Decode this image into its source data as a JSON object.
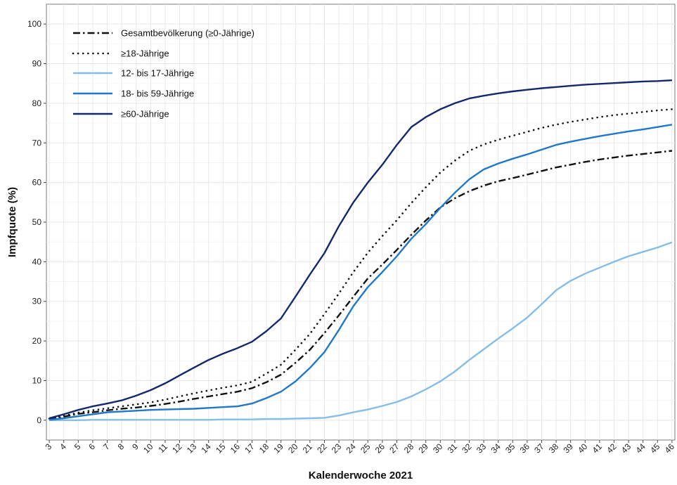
{
  "chart_data": {
    "type": "line",
    "xlabel": "Kalenderwoche 2021",
    "ylabel": "Impfquote (%)",
    "xlim": [
      2.8,
      46.2
    ],
    "ylim": [
      -5,
      105
    ],
    "x_ticks": [
      3,
      4,
      5,
      6,
      7,
      8,
      9,
      10,
      11,
      12,
      13,
      14,
      15,
      16,
      17,
      18,
      19,
      20,
      21,
      22,
      23,
      24,
      25,
      26,
      27,
      28,
      29,
      30,
      31,
      32,
      33,
      34,
      35,
      36,
      37,
      38,
      39,
      40,
      41,
      42,
      43,
      44,
      45,
      46
    ],
    "y_ticks": [
      0,
      10,
      20,
      30,
      40,
      50,
      60,
      70,
      80,
      90,
      100
    ],
    "grid": true,
    "legend_position": "top-left",
    "series": [
      {
        "name": "Gesamtbevölkerung (≥0-Jährige)",
        "color": "#111111",
        "style": "dashdot",
        "values": [
          0.3,
          0.9,
          1.6,
          2.0,
          2.5,
          2.9,
          3.2,
          3.6,
          4.1,
          4.7,
          5.4,
          6.0,
          6.6,
          7.2,
          8.1,
          9.6,
          11.5,
          14.5,
          17.8,
          22.0,
          26.5,
          31.2,
          35.8,
          39.3,
          43.0,
          46.8,
          50.4,
          53.7,
          56.0,
          57.8,
          59.2,
          60.3,
          61.1,
          62.0,
          62.9,
          63.8,
          64.5,
          65.2,
          65.8,
          66.3,
          66.8,
          67.2,
          67.6,
          68.0
        ]
      },
      {
        "name": "≥18-Jährige",
        "color": "#111111",
        "style": "dotted",
        "values": [
          0.4,
          1.1,
          1.9,
          2.5,
          3.0,
          3.5,
          4.0,
          4.5,
          5.2,
          6.0,
          6.8,
          7.5,
          8.2,
          8.8,
          9.7,
          11.8,
          14.0,
          17.8,
          21.8,
          26.8,
          32.0,
          37.4,
          42.3,
          46.5,
          50.5,
          54.8,
          58.8,
          62.5,
          65.5,
          68.0,
          69.6,
          70.8,
          71.8,
          72.8,
          73.8,
          74.6,
          75.3,
          75.9,
          76.5,
          77.0,
          77.4,
          77.8,
          78.2,
          78.5
        ]
      },
      {
        "name": "12- bis 17-Jährige",
        "color": "#86bde6",
        "style": "solid",
        "values": [
          0,
          0,
          0,
          0.1,
          0.1,
          0.1,
          0.1,
          0.1,
          0.1,
          0.1,
          0.1,
          0.1,
          0.2,
          0.2,
          0.2,
          0.3,
          0.3,
          0.4,
          0.5,
          0.6,
          1.2,
          2.0,
          2.7,
          3.6,
          4.6,
          6.0,
          7.8,
          9.8,
          12.3,
          15.2,
          17.9,
          20.6,
          23.2,
          25.9,
          29.3,
          32.8,
          35.2,
          37.0,
          38.5,
          40.0,
          41.4,
          42.5,
          43.6,
          44.9
        ]
      },
      {
        "name": "18- bis 59-Jährige",
        "color": "#1f78c8",
        "style": "solid",
        "values": [
          0.1,
          0.5,
          1.0,
          1.5,
          2.0,
          2.2,
          2.4,
          2.6,
          2.7,
          2.8,
          2.9,
          3.1,
          3.3,
          3.5,
          4.2,
          5.6,
          7.2,
          9.8,
          13.2,
          17.2,
          22.8,
          28.8,
          33.6,
          37.4,
          41.4,
          45.8,
          49.5,
          53.6,
          57.4,
          60.8,
          63.3,
          64.8,
          66.0,
          67.1,
          68.3,
          69.5,
          70.3,
          71.0,
          71.7,
          72.3,
          72.9,
          73.4,
          74.0,
          74.6
        ]
      },
      {
        "name": "≥60-Jährige",
        "color": "#14286e",
        "style": "solid",
        "values": [
          0.5,
          1.5,
          2.6,
          3.5,
          4.2,
          5.0,
          6.2,
          7.6,
          9.3,
          11.3,
          13.3,
          15.2,
          16.8,
          18.2,
          19.8,
          22.5,
          25.7,
          31.2,
          36.8,
          42.2,
          49.0,
          55.0,
          60.0,
          64.5,
          69.5,
          74.0,
          76.5,
          78.5,
          80.0,
          81.2,
          81.9,
          82.5,
          83.0,
          83.4,
          83.8,
          84.1,
          84.4,
          84.7,
          84.9,
          85.1,
          85.3,
          85.5,
          85.6,
          85.8
        ]
      }
    ]
  }
}
